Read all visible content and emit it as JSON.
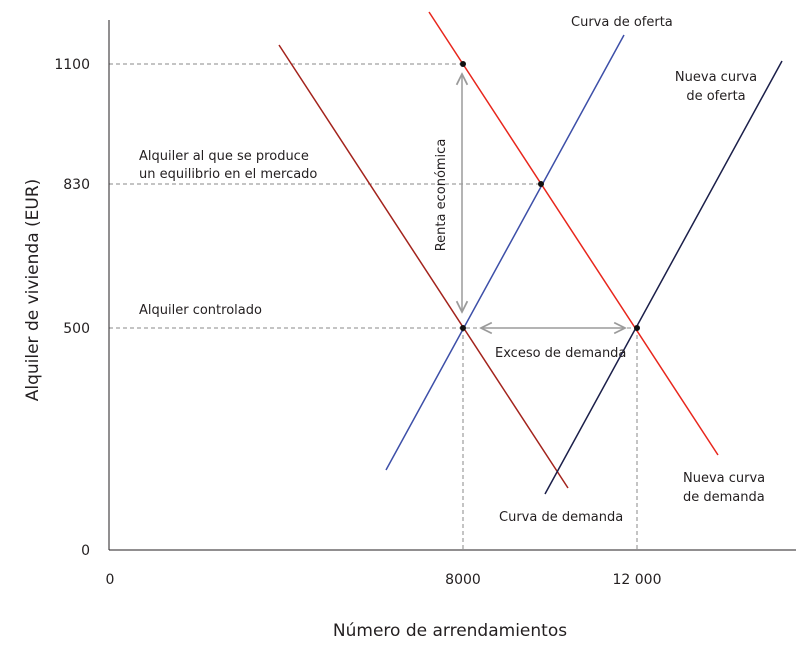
{
  "axes": {
    "x_label": "Número de arrendamientos",
    "y_label": "Alquiler de vivienda (EUR)",
    "x_ticks": [
      "0",
      "8000",
      "12 000"
    ],
    "y_ticks": [
      "0",
      "500",
      "830",
      "1100"
    ]
  },
  "curves": {
    "supply": {
      "label": "Curva de oferta",
      "color": "#3d4fa8"
    },
    "new_supply": {
      "label_line1": "Nueva curva",
      "label_line2": "de oferta",
      "color": "#1b1f4a"
    },
    "demand": {
      "label": "Curva de demanda",
      "color": "#a3231c"
    },
    "new_demand": {
      "label_line1": "Nueva curva",
      "label_line2": "de demanda",
      "color": "#e8261c"
    }
  },
  "annotations": {
    "equilibrium_line1": "Alquiler al que se produce",
    "equilibrium_line2": "un equilibrio en el mercado",
    "controlled_rent": "Alquiler controlado",
    "economic_rent": "Renta económica",
    "excess_demand": "Exceso de demanda"
  },
  "arrow_color": "#9b9b9b"
}
